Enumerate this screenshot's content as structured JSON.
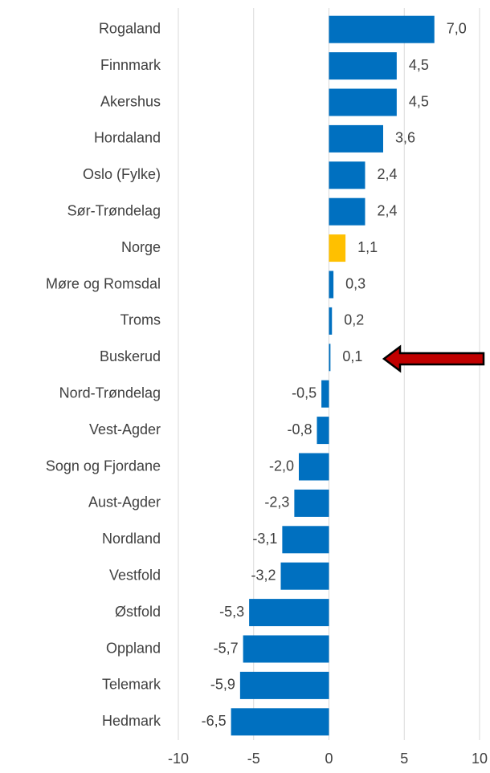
{
  "chart_data": {
    "type": "hbar",
    "categories": [
      "Rogaland",
      "Finnmark",
      "Akershus",
      "Hordaland",
      "Oslo (Fylke)",
      "Sør-Trøndelag",
      "Norge",
      "Møre og Romsdal",
      "Troms",
      "Buskerud",
      "Nord-Trøndelag",
      "Vest-Agder",
      "Sogn og Fjordane",
      "Aust-Agder",
      "Nordland",
      "Vestfold",
      "Østfold",
      "Oppland",
      "Telemark",
      "Hedmark"
    ],
    "values": [
      7.0,
      4.5,
      4.5,
      3.6,
      2.4,
      2.4,
      1.1,
      0.3,
      0.2,
      0.1,
      -0.5,
      -0.8,
      -2.0,
      -2.3,
      -3.1,
      -3.2,
      -5.3,
      -5.7,
      -5.9,
      -6.5
    ],
    "value_labels": [
      "7,0",
      "4,5",
      "4,5",
      "3,6",
      "2,4",
      "2,4",
      "1,1",
      "0,3",
      "0,2",
      "0,1",
      "-0,5",
      "-0,8",
      "-2,0",
      "-2,3",
      "-3,1",
      "-3,2",
      "-5,3",
      "-5,7",
      "-5,9",
      "-6,5"
    ],
    "colors": [
      "#0070c0",
      "#0070c0",
      "#0070c0",
      "#0070c0",
      "#0070c0",
      "#0070c0",
      "#ffc000",
      "#0070c0",
      "#0070c0",
      "#0070c0",
      "#0070c0",
      "#0070c0",
      "#0070c0",
      "#0070c0",
      "#0070c0",
      "#0070c0",
      "#0070c0",
      "#0070c0",
      "#0070c0",
      "#0070c0"
    ],
    "xlim": [
      -10,
      10
    ],
    "xticks": [
      -10,
      -5,
      0,
      5,
      10
    ],
    "grid": true
  }
}
